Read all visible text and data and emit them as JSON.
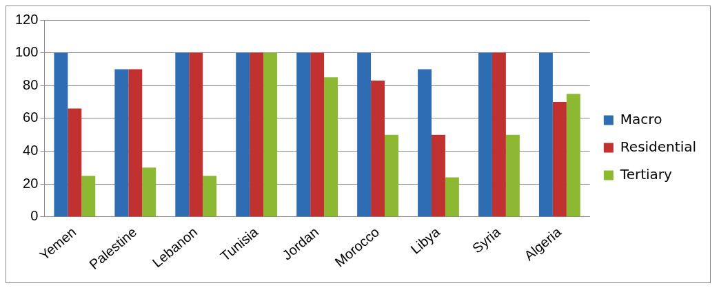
{
  "chart_data": {
    "type": "bar",
    "categories": [
      "Yemen",
      "Palestine",
      "Lebanon",
      "Tunisia",
      "Jordan",
      "Morocco",
      "Libya",
      "Syria",
      "Algeria"
    ],
    "series": [
      {
        "name": "Macro",
        "color": "#2e6db4",
        "values": [
          100,
          90,
          100,
          100,
          100,
          100,
          90,
          100,
          100
        ]
      },
      {
        "name": "Residential",
        "color": "#c0312f",
        "values": [
          66,
          90,
          100,
          100,
          100,
          83,
          50,
          100,
          70
        ]
      },
      {
        "name": "Tertiary",
        "color": "#8db832",
        "values": [
          25,
          30,
          25,
          100,
          85,
          50,
          24,
          50,
          75
        ]
      }
    ],
    "ylim": [
      0,
      120
    ],
    "yticks": [
      0,
      20,
      40,
      60,
      80,
      100,
      120
    ],
    "grid": "y",
    "legend": "right"
  }
}
